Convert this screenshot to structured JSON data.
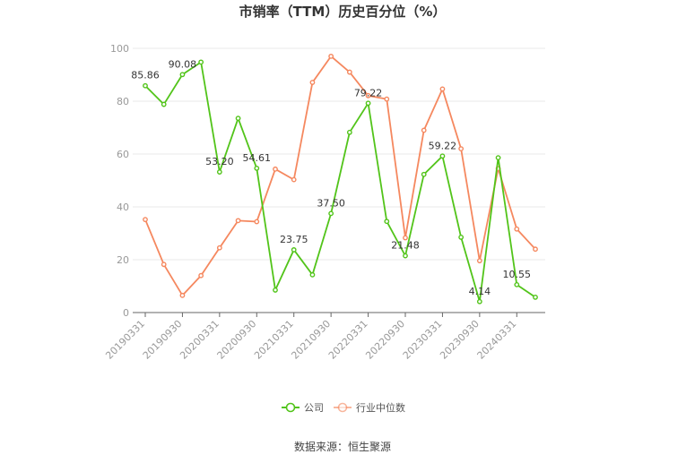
{
  "chart_data": {
    "type": "line",
    "title": "市销率（TTM）历史百分位（%）",
    "source": "数据来源：恒生聚源",
    "ylim": [
      0,
      100
    ],
    "yticks": [
      0,
      20,
      40,
      60,
      80,
      100
    ],
    "grid": true,
    "legend_position": "bottom",
    "x": [
      "20190331",
      "20190630",
      "20190930",
      "20191231",
      "20200331",
      "20200630",
      "20200930",
      "20201231",
      "20210331",
      "20210630",
      "20210930",
      "20211231",
      "20220331",
      "20220630",
      "20220930",
      "20221231",
      "20230331",
      "20230630",
      "20230930",
      "20231231",
      "20240331",
      "20240630"
    ],
    "x_tick_labels": [
      "20190331",
      "20190930",
      "20200331",
      "20200930",
      "20210331",
      "20210930",
      "20220331",
      "20220930",
      "20230331",
      "20230930",
      "20240331"
    ],
    "series": [
      {
        "name": "公司",
        "color": "#52c41a",
        "values": [
          85.86,
          78.8,
          90.08,
          94.8,
          53.2,
          73.5,
          54.61,
          8.5,
          23.75,
          14.3,
          37.5,
          68.2,
          79.22,
          34.5,
          21.48,
          52.3,
          59.22,
          28.5,
          4.14,
          58.6,
          10.55,
          5.8
        ],
        "labels": [
          {
            "index": 0,
            "text": "85.86"
          },
          {
            "index": 2,
            "text": "90.08"
          },
          {
            "index": 4,
            "text": "53.20"
          },
          {
            "index": 6,
            "text": "54.61"
          },
          {
            "index": 8,
            "text": "23.75"
          },
          {
            "index": 10,
            "text": "37.50"
          },
          {
            "index": 12,
            "text": "79.22"
          },
          {
            "index": 14,
            "text": "21.48"
          },
          {
            "index": 16,
            "text": "59.22"
          },
          {
            "index": 18,
            "text": "4.14"
          },
          {
            "index": 20,
            "text": "10.55"
          }
        ]
      },
      {
        "name": "行业中位数",
        "color": "#f5885f",
        "values": [
          35.2,
          18.2,
          6.5,
          14.0,
          24.5,
          34.8,
          34.4,
          54.3,
          50.3,
          87.1,
          97.0,
          91.0,
          82.1,
          80.8,
          28.3,
          69.0,
          84.6,
          62.0,
          19.6,
          54.5,
          31.6,
          24.0
        ]
      }
    ]
  }
}
